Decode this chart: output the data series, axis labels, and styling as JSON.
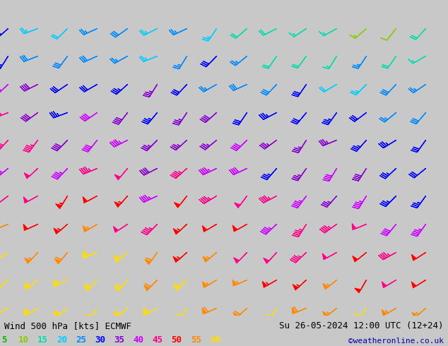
{
  "title_left": "Wind 500 hPa [kts] ECMWF",
  "title_right": "Su 26-05-2024 12:00 UTC (12+24)",
  "credit": "©weatheronline.co.uk",
  "legend_values": [
    5,
    10,
    15,
    20,
    25,
    30,
    35,
    40,
    45,
    50,
    55,
    60
  ],
  "legend_colors": [
    "#00bb00",
    "#88cc00",
    "#00ddaa",
    "#00ccff",
    "#0088ff",
    "#0000ff",
    "#8800cc",
    "#cc00ff",
    "#ff0088",
    "#ff0000",
    "#ff8800",
    "#ffdd00"
  ],
  "background_color": "#c8c8c8",
  "land_color": "#ccffaa",
  "sea_color": "#d0d0d0",
  "coast_color": "#999999",
  "border_color": "#aaaaaa",
  "map_extent": [
    12.0,
    42.0,
    32.5,
    55.0
  ],
  "figsize": [
    6.34,
    4.9
  ],
  "dpi": 100,
  "bottom_bar_color": "#d8d8d8",
  "bottom_text_color": "#000000",
  "credit_color": "#0000aa"
}
